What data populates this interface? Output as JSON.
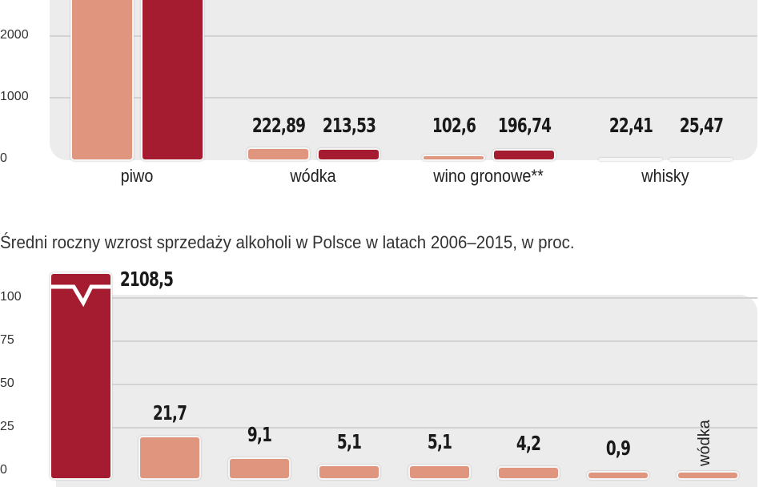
{
  "colors": {
    "series_light": "#e0967e",
    "series_dark": "#a51c30",
    "panel": "#ececec"
  },
  "chart_data": [
    {
      "type": "bar",
      "title": "",
      "categories": [
        "piwo",
        "wódka",
        "wino gronowe**",
        "whisky"
      ],
      "series": [
        {
          "values": [
            null,
            222.89,
            102.6,
            22.41
          ],
          "labels": [
            "",
            "222,89",
            "102,6",
            "22,41"
          ],
          "color": "#e0967e"
        },
        {
          "values": [
            null,
            213.53,
            196.74,
            25.47
          ],
          "labels": [
            "",
            "213,53",
            "196,74",
            "25,47"
          ],
          "color": "#a51c30"
        }
      ],
      "yticks": [
        "0",
        "1000",
        "2000"
      ],
      "ylim": [
        0,
        2600
      ],
      "note": "",
      "grid": true
    },
    {
      "type": "bar",
      "title": "Średni roczny wzrost sprzedaży alkoholi w Polsce w latach 2006–2015, w proc.",
      "categories": [
        "",
        "",
        "",
        "",
        "",
        "",
        "",
        "wódka"
      ],
      "values": [
        2108.5,
        21.7,
        9.1,
        5.1,
        5.1,
        4.2,
        0.9,
        null
      ],
      "labels": [
        "2108,5",
        "21,7",
        "9,1",
        "5,1",
        "5,1",
        "4,2",
        "0,9",
        ""
      ],
      "colors": [
        "#a51c30",
        "#e0967e",
        "#e0967e",
        "#e0967e",
        "#e0967e",
        "#e0967e",
        "#e0967e",
        "#e0967e"
      ],
      "yticks": [
        "0",
        "25",
        "50",
        "75",
        "100"
      ],
      "ylim": [
        0,
        110
      ],
      "axis_break": true,
      "grid": true
    }
  ]
}
